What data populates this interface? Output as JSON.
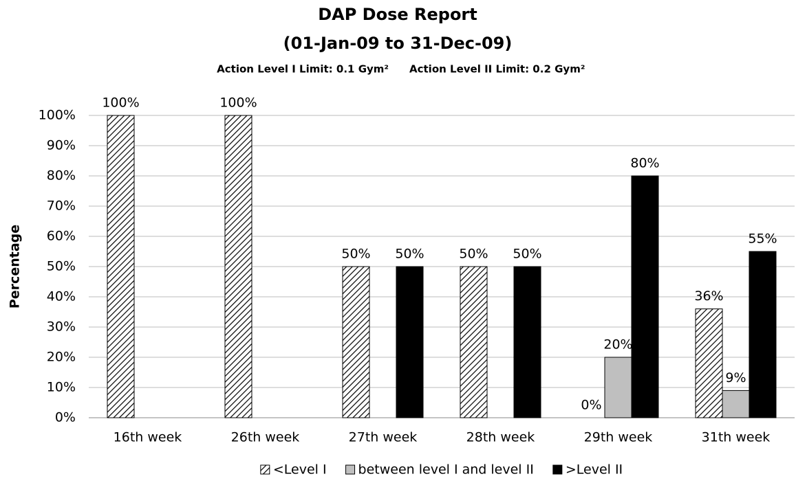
{
  "chart_data": {
    "type": "bar",
    "title": "DAP Dose Report",
    "subtitle": "(01-Jan-09 to 31-Dec-09)",
    "annotations": [
      "Action Level I Limit: 0.1 Gym²",
      "Action Level II Limit: 0.2 Gym²"
    ],
    "y_label": "Percentage",
    "categories": [
      "16th week",
      "26th week",
      "27th week",
      "28th week",
      "29th week",
      "31th week"
    ],
    "series": [
      {
        "name": "<Level I",
        "color": "#000000",
        "pattern": "hatch",
        "values": [
          100,
          100,
          50,
          50,
          0,
          36
        ],
        "value_labels": [
          "100%",
          "100%",
          "50%",
          "50%",
          "0%",
          "36%"
        ]
      },
      {
        "name": "between level I and level II",
        "color": "#bfbfbf",
        "values": [
          null,
          null,
          null,
          null,
          20,
          9
        ],
        "value_labels": [
          null,
          null,
          null,
          null,
          "20%",
          "9%"
        ]
      },
      {
        "name": ">Level II",
        "color": "#000000",
        "values": [
          null,
          null,
          50,
          50,
          80,
          55
        ],
        "value_labels": [
          null,
          null,
          "50%",
          "50%",
          "80%",
          "55%"
        ]
      }
    ],
    "ylim": [
      0,
      100
    ],
    "yticks": [
      {
        "value": 0,
        "label": "0%"
      },
      {
        "value": 10,
        "label": "10%"
      },
      {
        "value": 20,
        "label": "20%"
      },
      {
        "value": 30,
        "label": "30%"
      },
      {
        "value": 40,
        "label": "40%"
      },
      {
        "value": 50,
        "label": "50%"
      },
      {
        "value": 60,
        "label": "60%"
      },
      {
        "value": 70,
        "label": "70%"
      },
      {
        "value": 80,
        "label": "80%"
      },
      {
        "value": 90,
        "label": "90%"
      },
      {
        "value": 100,
        "label": "100%"
      }
    ],
    "grid": true,
    "legend": "bottom"
  }
}
